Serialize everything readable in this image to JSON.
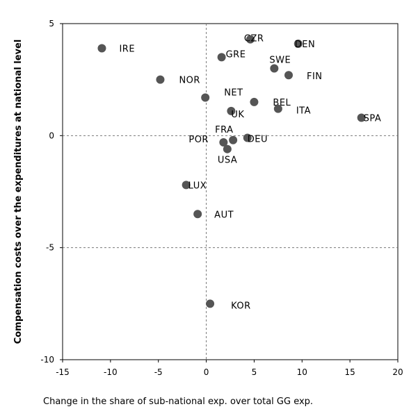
{
  "chart_data": {
    "type": "scatter",
    "title": "",
    "xlabel": "Change in the share of sub-national exp. over total GG exp.",
    "ylabel": "Compensation costs over the expenditures at national level",
    "xlim": [
      -15,
      20
    ],
    "ylim": [
      -10,
      5
    ],
    "xticks": [
      "-15",
      "-10",
      "-5",
      "0",
      "5",
      "10",
      "15",
      "20"
    ],
    "yticks": [
      "5",
      "0",
      "-5",
      "-10"
    ],
    "reference_lines": {
      "x": 0,
      "y": [
        0,
        -5
      ]
    },
    "grid": false,
    "marker_color": "#555555",
    "points": [
      {
        "label": "CZR",
        "x": 4.6,
        "y": 4.3
      },
      {
        "label": "DEN",
        "x": 9.6,
        "y": 4.1
      },
      {
        "label": "IRE",
        "x": -10.9,
        "y": 3.9
      },
      {
        "label": "GRE",
        "x": 1.6,
        "y": 3.5
      },
      {
        "label": "SWE",
        "x": 7.1,
        "y": 3.0
      },
      {
        "label": "FIN",
        "x": 8.6,
        "y": 2.7
      },
      {
        "label": "NOR",
        "x": -4.8,
        "y": 2.5
      },
      {
        "label": "NET",
        "x": -0.1,
        "y": 1.7
      },
      {
        "label": "BEL",
        "x": 5.0,
        "y": 1.5
      },
      {
        "label": "UK",
        "x": 2.6,
        "y": 1.1
      },
      {
        "label": "ITA",
        "x": 7.5,
        "y": 1.2
      },
      {
        "label": "SPA",
        "x": 16.2,
        "y": 0.8
      },
      {
        "label": "FRA",
        "x": 2.8,
        "y": -0.2
      },
      {
        "label": "POR",
        "x": 1.8,
        "y": -0.3
      },
      {
        "label": "DEU",
        "x": 4.3,
        "y": -0.1
      },
      {
        "label": "USA",
        "x": 2.2,
        "y": -0.6
      },
      {
        "label": "LUX",
        "x": -2.1,
        "y": -2.2
      },
      {
        "label": "AUT",
        "x": -0.9,
        "y": -3.5
      },
      {
        "label": "KOR",
        "x": 0.4,
        "y": -7.5
      }
    ]
  }
}
